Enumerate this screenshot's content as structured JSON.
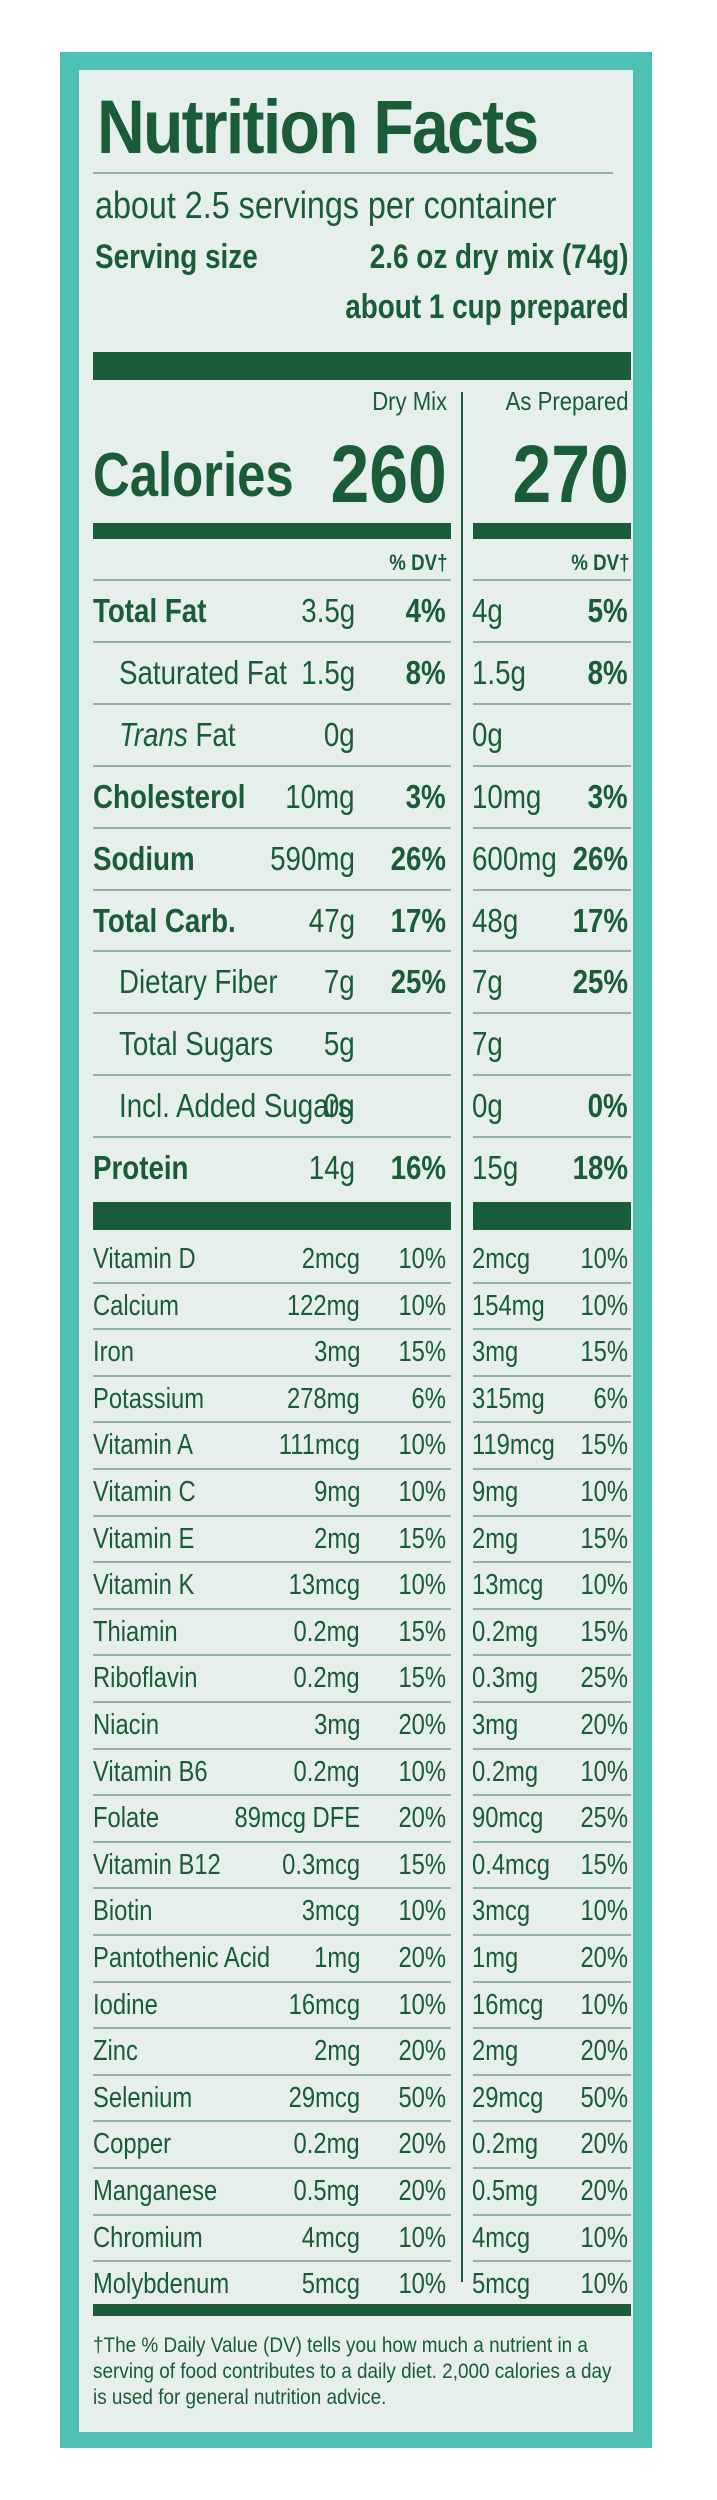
{
  "label": {
    "title": "Nutrition Facts",
    "servings_per_container": "about 2.5 servings per container",
    "serving_size_label": "Serving size",
    "serving_size_value": "2.6 oz dry mix (74g)",
    "serving_size_prepared": "about 1 cup prepared",
    "col_dry": "Dry Mix",
    "col_prepared": "As Prepared",
    "calories_label": "Calories",
    "calories_dry": "260",
    "calories_prepared": "270",
    "dv_header": "% DV†"
  },
  "macros": [
    {
      "name": "Total Fat",
      "bold": true,
      "indent": false,
      "dry_amt": "3.5g",
      "dry_dv": "4%",
      "prep_amt": "4g",
      "prep_dv": "5%"
    },
    {
      "name": "Saturated Fat",
      "bold": false,
      "indent": true,
      "dry_amt": "1.5g",
      "dry_dv": "8%",
      "prep_amt": "1.5g",
      "prep_dv": "8%"
    },
    {
      "name_italic": "Trans",
      "name": " Fat",
      "bold": false,
      "indent": true,
      "dry_amt": "0g",
      "dry_dv": "",
      "prep_amt": "0g",
      "prep_dv": ""
    },
    {
      "name": "Cholesterol",
      "bold": true,
      "indent": false,
      "dry_amt": "10mg",
      "dry_dv": "3%",
      "prep_amt": "10mg",
      "prep_dv": "3%"
    },
    {
      "name": "Sodium",
      "bold": true,
      "indent": false,
      "dry_amt": "590mg",
      "dry_dv": "26%",
      "prep_amt": "600mg",
      "prep_dv": "26%"
    },
    {
      "name": "Total Carb.",
      "bold": true,
      "indent": false,
      "dry_amt": "47g",
      "dry_dv": "17%",
      "prep_amt": "48g",
      "prep_dv": "17%"
    },
    {
      "name": "Dietary Fiber",
      "bold": false,
      "indent": true,
      "dry_amt": "7g",
      "dry_dv": "25%",
      "prep_amt": "7g",
      "prep_dv": "25%"
    },
    {
      "name": "Total Sugars",
      "bold": false,
      "indent": true,
      "dry_amt": "5g",
      "dry_dv": "",
      "prep_amt": "7g",
      "prep_dv": ""
    },
    {
      "name": "Incl. Added Sugars",
      "bold": false,
      "indent": true,
      "dry_amt": "0g",
      "dry_dv": "",
      "prep_amt": "0g",
      "prep_dv": "0%"
    },
    {
      "name": "Protein",
      "bold": true,
      "indent": false,
      "dry_amt": "14g",
      "dry_dv": "16%",
      "prep_amt": "15g",
      "prep_dv": "18%"
    }
  ],
  "micros": [
    {
      "name": "Vitamin D",
      "dry_amt": "2mcg",
      "dry_dv": "10%",
      "prep_amt": "2mcg",
      "prep_dv": "10%"
    },
    {
      "name": "Calcium",
      "dry_amt": "122mg",
      "dry_dv": "10%",
      "prep_amt": "154mg",
      "prep_dv": "10%"
    },
    {
      "name": "Iron",
      "dry_amt": "3mg",
      "dry_dv": "15%",
      "prep_amt": "3mg",
      "prep_dv": "15%"
    },
    {
      "name": "Potassium",
      "dry_amt": "278mg",
      "dry_dv": "6%",
      "prep_amt": "315mg",
      "prep_dv": "6%"
    },
    {
      "name": "Vitamin A",
      "dry_amt": "111mcg",
      "dry_dv": "10%",
      "prep_amt": "119mcg",
      "prep_dv": "15%"
    },
    {
      "name": "Vitamin C",
      "dry_amt": "9mg",
      "dry_dv": "10%",
      "prep_amt": "9mg",
      "prep_dv": "10%"
    },
    {
      "name": "Vitamin E",
      "dry_amt": "2mg",
      "dry_dv": "15%",
      "prep_amt": "2mg",
      "prep_dv": "15%"
    },
    {
      "name": "Vitamin K",
      "dry_amt": "13mcg",
      "dry_dv": "10%",
      "prep_amt": "13mcg",
      "prep_dv": "10%"
    },
    {
      "name": "Thiamin",
      "dry_amt": "0.2mg",
      "dry_dv": "15%",
      "prep_amt": "0.2mg",
      "prep_dv": "15%"
    },
    {
      "name": "Riboflavin",
      "dry_amt": "0.2mg",
      "dry_dv": "15%",
      "prep_amt": "0.3mg",
      "prep_dv": "25%"
    },
    {
      "name": "Niacin",
      "dry_amt": "3mg",
      "dry_dv": "20%",
      "prep_amt": "3mg",
      "prep_dv": "20%"
    },
    {
      "name": "Vitamin B6",
      "dry_amt": "0.2mg",
      "dry_dv": "10%",
      "prep_amt": "0.2mg",
      "prep_dv": "10%"
    },
    {
      "name": "Folate",
      "dry_amt": "89mcg DFE",
      "dry_dv": "20%",
      "prep_amt": "90mcg",
      "prep_dv": "25%"
    },
    {
      "name": "Vitamin B12",
      "dry_amt": "0.3mcg",
      "dry_dv": "15%",
      "prep_amt": "0.4mcg",
      "prep_dv": "15%"
    },
    {
      "name": "Biotin",
      "dry_amt": "3mcg",
      "dry_dv": "10%",
      "prep_amt": "3mcg",
      "prep_dv": "10%"
    },
    {
      "name": "Pantothenic Acid",
      "dry_amt": "1mg",
      "dry_dv": "20%",
      "prep_amt": "1mg",
      "prep_dv": "20%"
    },
    {
      "name": "Iodine",
      "dry_amt": "16mcg",
      "dry_dv": "10%",
      "prep_amt": "16mcg",
      "prep_dv": "10%"
    },
    {
      "name": "Zinc",
      "dry_amt": "2mg",
      "dry_dv": "20%",
      "prep_amt": "2mg",
      "prep_dv": "20%"
    },
    {
      "name": "Selenium",
      "dry_amt": "29mcg",
      "dry_dv": "50%",
      "prep_amt": "29mcg",
      "prep_dv": "50%"
    },
    {
      "name": "Copper",
      "dry_amt": "0.2mg",
      "dry_dv": "20%",
      "prep_amt": "0.2mg",
      "prep_dv": "20%"
    },
    {
      "name": "Manganese",
      "dry_amt": "0.5mg",
      "dry_dv": "20%",
      "prep_amt": "0.5mg",
      "prep_dv": "20%"
    },
    {
      "name": "Chromium",
      "dry_amt": "4mcg",
      "dry_dv": "10%",
      "prep_amt": "4mcg",
      "prep_dv": "10%"
    },
    {
      "name": "Molybdenum",
      "dry_amt": "5mcg",
      "dry_dv": "10%",
      "prep_amt": "5mcg",
      "prep_dv": "10%"
    }
  ],
  "footnote": "†The % Daily Value (DV) tells you how much a nutrient in a serving of  food contributes to a daily diet. 2,000 calories a day is used for general nutrition advice.",
  "colors": {
    "ink": "#1b5c38",
    "border": "#4fc1b2",
    "panel": "#e6efeb",
    "rule": "#8fb5a1"
  }
}
